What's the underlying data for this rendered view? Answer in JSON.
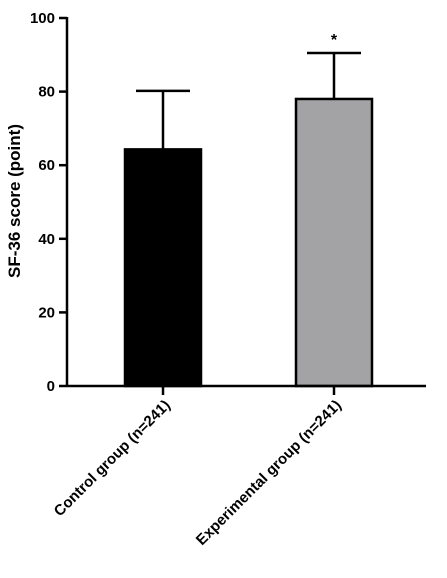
{
  "chart_data": {
    "type": "bar",
    "ylabel": "SF-36 score (point)",
    "xlabel": "",
    "ylim": [
      0,
      100
    ],
    "yticks": [
      0,
      20,
      40,
      60,
      80,
      100
    ],
    "grid": false,
    "categories": [
      "Control group (n=241)",
      "Experimental group (n=241)"
    ],
    "values": [
      64.3,
      78.0
    ],
    "error_upper": [
      80.2,
      90.5
    ],
    "bar_colors": [
      "#000000",
      "#a3a3a6"
    ],
    "annotations": [
      "",
      "*"
    ]
  }
}
